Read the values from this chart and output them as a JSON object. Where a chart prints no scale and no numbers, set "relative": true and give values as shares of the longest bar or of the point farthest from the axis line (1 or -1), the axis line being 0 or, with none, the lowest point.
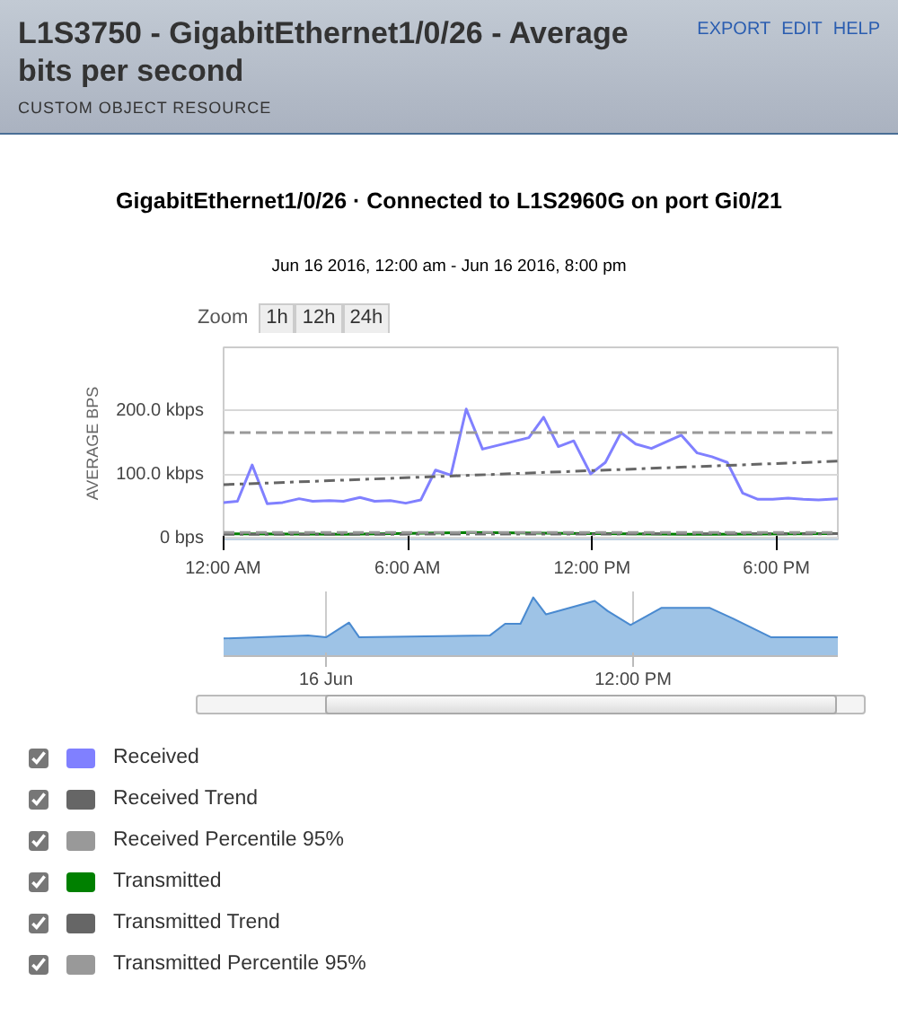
{
  "chart_data": [
    {
      "type": "line",
      "title": "GigabitEthernet1/0/26 · Connected to L1S2960G on port Gi0/21",
      "subtitle": "Jun 16 2016, 12:00 am - Jun 16 2016, 8:00 pm",
      "annotations": [
        "L1S3750 - GigabitEthernet1/0/26 - Average bits per second",
        "CUSTOM OBJECT RESOURCE",
        "EXPORT",
        "EDIT",
        "HELP",
        "Zoom",
        "1h",
        "12h",
        "24h"
      ],
      "ylabel": "AVERAGE BPS",
      "xlim": [
        0,
        20
      ],
      "xticks": [
        {
          "value": 0,
          "label": "12:00 AM"
        },
        {
          "value": 6,
          "label": "6:00 AM"
        },
        {
          "value": 12,
          "label": "12:00 PM"
        },
        {
          "value": 18,
          "label": "6:00 PM"
        }
      ],
      "ylim": [
        -2,
        300
      ],
      "yticks": [
        {
          "value": 0,
          "label": "0 bps"
        },
        {
          "value": 100,
          "label": "100.0 kbps"
        },
        {
          "value": 200,
          "label": "200.0 kbps"
        }
      ],
      "grid": "y",
      "legend": "bottom",
      "marker": "none",
      "series": [
        {
          "name": "Received",
          "color": "#8080ff",
          "line_style": "solid",
          "x": [
            0,
            0.45,
            0.93,
            1.42,
            1.92,
            2.46,
            2.9,
            3.45,
            3.9,
            4.44,
            4.92,
            5.43,
            5.93,
            6.42,
            6.9,
            7.4,
            7.9,
            8.43,
            9.94,
            10.42,
            10.9,
            11.4,
            11.95,
            12.43,
            12.94,
            13.42,
            13.93,
            14.9,
            15.42,
            15.9,
            16.4,
            16.9,
            17.4,
            17.88,
            18.38,
            18.87,
            19.37,
            20
          ],
          "values": [
            56,
            58,
            115,
            54,
            56,
            62,
            58,
            59,
            58,
            64,
            58,
            59,
            55,
            60,
            107,
            99,
            203,
            140,
            158,
            190,
            144,
            153,
            101,
            119,
            166,
            148,
            141,
            162,
            134,
            128,
            119,
            71,
            61,
            61,
            63,
            61,
            60,
            62
          ]
        },
        {
          "name": "Received Trend",
          "color": "#666666",
          "line_style": "dashdot",
          "x": [
            0,
            20
          ],
          "values": [
            84,
            121
          ]
        },
        {
          "name": "Received Percentile 95%",
          "color": "#999999",
          "line_style": "dashed",
          "x": [
            0,
            20
          ],
          "values": [
            166,
            166
          ]
        },
        {
          "name": "Transmitted",
          "color": "#008000",
          "line_style": "solid",
          "x": [
            0,
            4,
            8,
            12,
            16,
            20
          ],
          "values": [
            7,
            6,
            9,
            7,
            6,
            7
          ]
        },
        {
          "name": "Transmitted Trend",
          "color": "#666666",
          "line_style": "dashdot",
          "x": [
            0,
            20
          ],
          "values": [
            6,
            7
          ]
        },
        {
          "name": "Transmitted Percentile 95%",
          "color": "#999999",
          "line_style": "dashed",
          "x": [
            0,
            20
          ],
          "values": [
            9,
            9
          ]
        }
      ]
    },
    {
      "type": "area",
      "relative": true,
      "xlim": [
        "2016-06-15T20:00",
        "2016-06-16T20:00"
      ],
      "xticks": [
        {
          "value": "2016-06-16",
          "label": "16 Jun"
        },
        {
          "value": "2016-06-16T12:00",
          "label": "12:00 PM"
        }
      ],
      "grid": "x",
      "series": [
        {
          "color": "#9ec3e6",
          "x": [
            "2016-06-15T20:00",
            "2016-06-15T23:18",
            "2016-06-16T00:00",
            "2016-06-16T00:54",
            "2016-06-16T01:18",
            "2016-06-16T06:24",
            "2016-06-16T07:00",
            "2016-06-16T07:36",
            "2016-06-16T08:06",
            "2016-06-16T08:36",
            "2016-06-16T10:30",
            "2016-06-16T11:00",
            "2016-06-16T11:54",
            "2016-06-16T13:06",
            "2016-06-16T15:00",
            "2016-06-16T15:54",
            "2016-06-16T17:24",
            "2016-06-16T20:00"
          ],
          "values": [
            0.3,
            0.35,
            0.32,
            0.57,
            0.32,
            0.35,
            0.55,
            0.55,
            1.0,
            0.71,
            0.94,
            0.77,
            0.53,
            0.82,
            0.82,
            0.64,
            0.32,
            0.32
          ]
        }
      ]
    }
  ]
}
